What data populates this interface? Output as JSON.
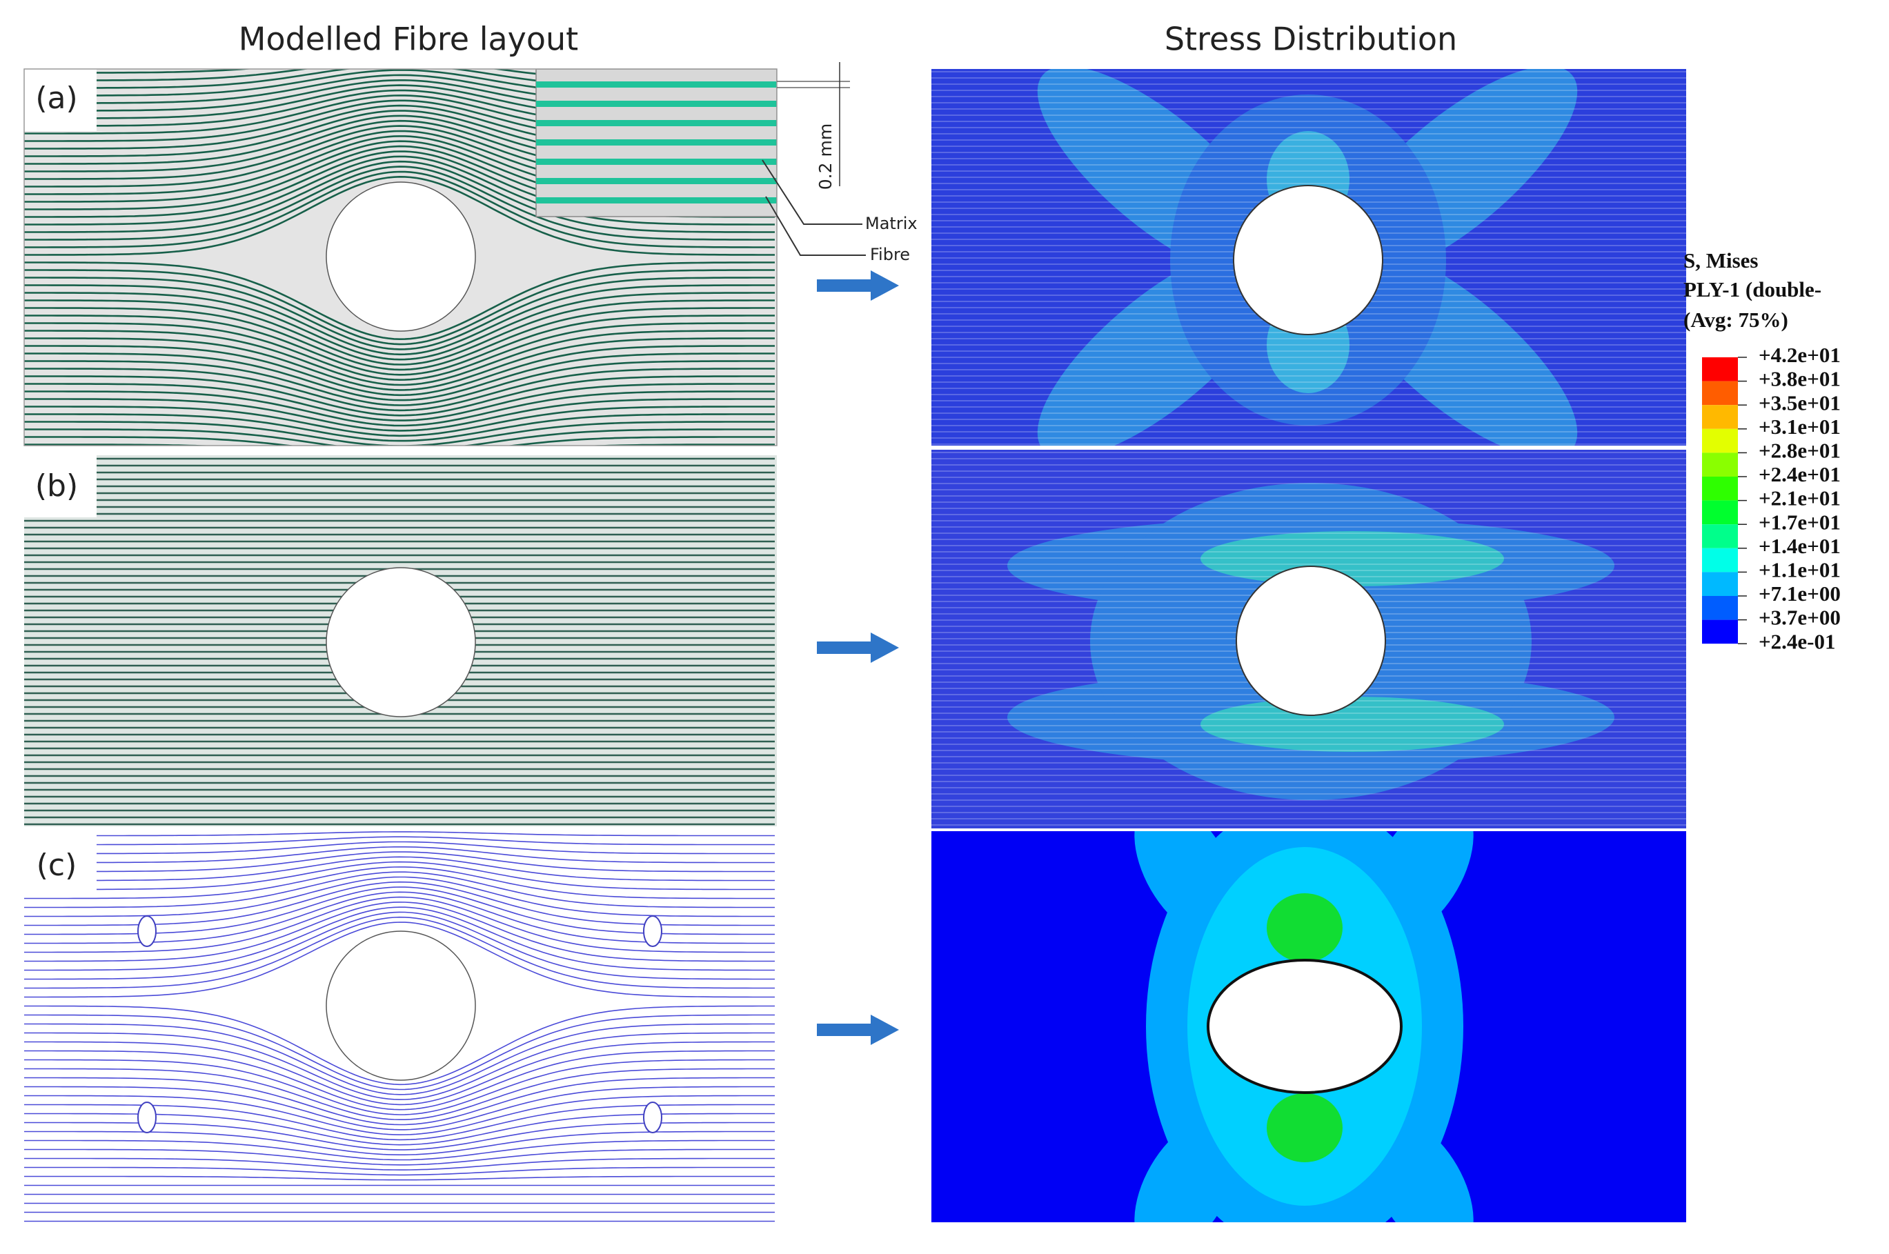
{
  "header": {
    "left_title": "Modelled Fibre layout",
    "right_title": "Stress Distribution"
  },
  "panels": [
    {
      "label": "(a)"
    },
    {
      "label": "(b)"
    },
    {
      "label": "(c)"
    }
  ],
  "inset": {
    "scale": "0.2 mm",
    "labels": [
      "Matrix",
      "Fibre"
    ]
  },
  "legend": {
    "title": [
      "S, Mises",
      "PLY-1 (double-",
      "(Avg: 75%)"
    ],
    "entries": [
      "+4.2e+01",
      "+3.8e+01",
      "+3.5e+01",
      "+3.1e+01",
      "+2.8e+01",
      "+2.4e+01",
      "+2.1e+01",
      "+1.7e+01",
      "+1.4e+01",
      "+1.1e+01",
      "+7.1e+00",
      "+3.7e+00",
      "+2.4e-01"
    ],
    "colors": [
      "#ff0000",
      "#ff5d00",
      "#ffb900",
      "#e3ff00",
      "#8aff00",
      "#2eff00",
      "#00ff2e",
      "#00ff8b",
      "#00ffe8",
      "#00b9ff",
      "#005dff",
      "#0000ff"
    ]
  }
}
